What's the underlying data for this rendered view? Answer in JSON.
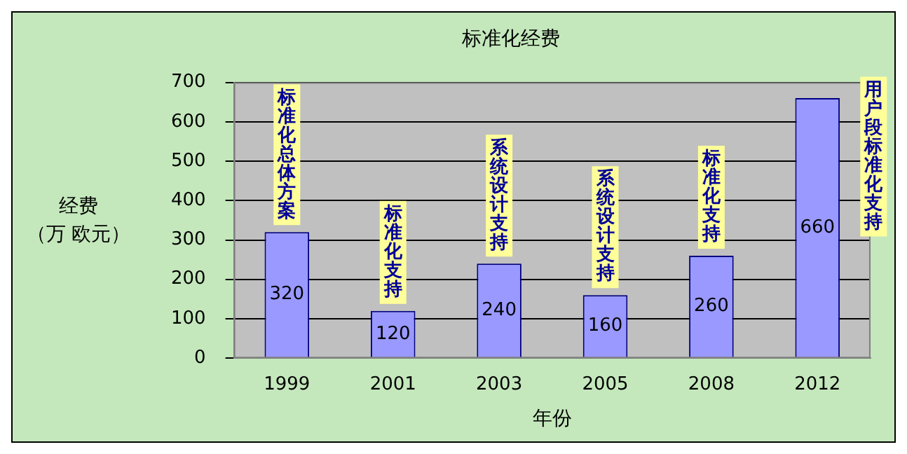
{
  "chart_data": {
    "type": "bar",
    "title": "标准化经费",
    "xlabel": "年份",
    "ylabel": "经费（万 欧元）",
    "categories": [
      "1999",
      "2001",
      "2003",
      "2005",
      "2008",
      "2012"
    ],
    "values": [
      320,
      120,
      240,
      160,
      260,
      660
    ],
    "color": "#9999ff",
    "ylim": [
      0,
      700
    ],
    "yticks": [
      0,
      100,
      200,
      300,
      400,
      500,
      600,
      700
    ],
    "grid": "y",
    "data_labels": true,
    "legend": false,
    "annotations": [
      {
        "text": "标准化总体方案",
        "x": "1999",
        "y": 320
      },
      {
        "text": "标准化支持",
        "x": "2001",
        "y": 120
      },
      {
        "text": "系统设计支持",
        "x": "2003",
        "y": 240
      },
      {
        "text": "系统设计支持",
        "x": "2005",
        "y": 160
      },
      {
        "text": "标准化支持",
        "x": "2008",
        "y": 260
      },
      {
        "text": "用户段标准化支持",
        "x": "2012",
        "y": 660
      }
    ]
  }
}
